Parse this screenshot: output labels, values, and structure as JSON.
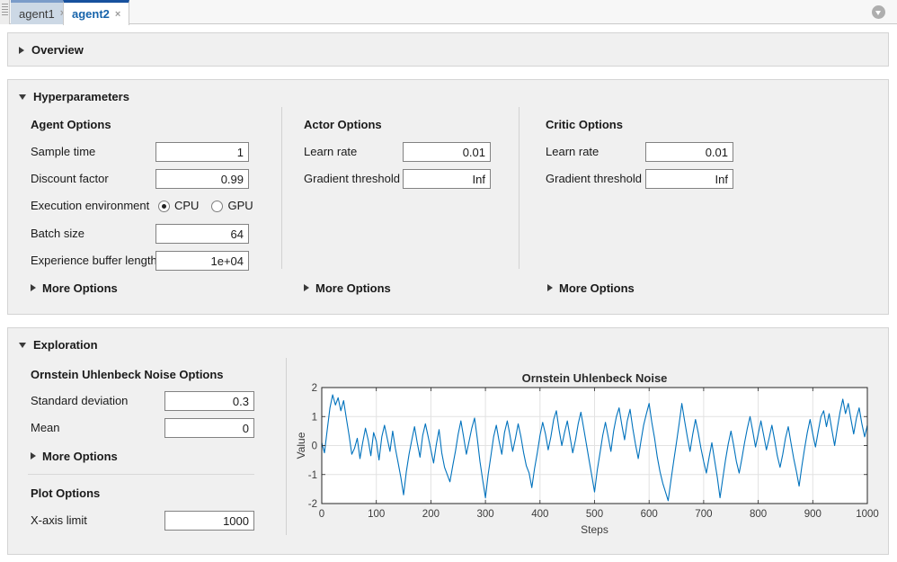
{
  "tabs": [
    {
      "label": "agent1",
      "close": "×",
      "active": false
    },
    {
      "label": "agent2",
      "close": "×",
      "active": true
    }
  ],
  "overview": {
    "title": "Overview"
  },
  "hyperparameters": {
    "title": "Hyperparameters",
    "agent_options": {
      "title": "Agent Options",
      "sample_time": {
        "label": "Sample time",
        "value": "1"
      },
      "discount_factor": {
        "label": "Discount factor",
        "value": "0.99"
      },
      "execution_environment": {
        "label": "Execution environment",
        "options": [
          {
            "label": "CPU",
            "selected": true
          },
          {
            "label": "GPU",
            "selected": false
          }
        ]
      },
      "batch_size": {
        "label": "Batch size",
        "value": "64"
      },
      "experience_buffer_length": {
        "label": "Experience buffer length",
        "value": "1e+04"
      },
      "more_options": "More Options"
    },
    "actor_options": {
      "title": "Actor Options",
      "learn_rate": {
        "label": "Learn rate",
        "value": "0.01"
      },
      "gradient_threshold": {
        "label": "Gradient threshold",
        "value": "Inf"
      },
      "more_options": "More Options"
    },
    "critic_options": {
      "title": "Critic Options",
      "learn_rate": {
        "label": "Learn rate",
        "value": "0.01"
      },
      "gradient_threshold": {
        "label": "Gradient threshold",
        "value": "Inf"
      },
      "more_options": "More Options"
    }
  },
  "exploration": {
    "title": "Exploration",
    "noise_options": {
      "title": "Ornstein Uhlenbeck Noise Options",
      "standard_deviation": {
        "label": "Standard deviation",
        "value": "0.3"
      },
      "mean": {
        "label": "Mean",
        "value": "0"
      },
      "more_options": "More Options"
    },
    "plot_options": {
      "title": "Plot Options",
      "x_axis_limit": {
        "label": "X-axis limit",
        "value": "1000"
      }
    }
  },
  "chart_data": {
    "type": "line",
    "title": "Ornstein Uhlenbeck Noise",
    "xlabel": "Steps",
    "ylabel": "Value",
    "xlim": [
      0,
      1000
    ],
    "ylim": [
      -2,
      2
    ],
    "xticks": [
      0,
      100,
      200,
      300,
      400,
      500,
      600,
      700,
      800,
      900,
      1000
    ],
    "yticks": [
      -2,
      -1,
      0,
      1,
      2
    ],
    "grid": true,
    "legend": "none",
    "line_color": "#0072BD",
    "x_step": 5,
    "values": [
      0.1,
      -0.25,
      0.55,
      1.3,
      1.75,
      1.4,
      1.65,
      1.2,
      1.55,
      0.95,
      0.35,
      -0.3,
      -0.1,
      0.25,
      -0.45,
      0.1,
      0.6,
      0.2,
      -0.35,
      0.45,
      0.15,
      -0.5,
      0.3,
      0.7,
      0.25,
      -0.2,
      0.5,
      -0.1,
      -0.6,
      -1.1,
      -1.7,
      -0.9,
      -0.3,
      0.2,
      0.65,
      0.1,
      -0.4,
      0.35,
      0.75,
      0.3,
      -0.15,
      -0.6,
      0.05,
      0.55,
      -0.25,
      -0.75,
      -1.0,
      -1.25,
      -0.7,
      -0.2,
      0.4,
      0.85,
      0.3,
      -0.3,
      0.15,
      0.6,
      0.95,
      0.25,
      -0.55,
      -1.2,
      -1.8,
      -1.0,
      -0.35,
      0.3,
      0.7,
      0.15,
      -0.3,
      0.45,
      0.85,
      0.35,
      -0.2,
      0.25,
      0.75,
      0.3,
      -0.25,
      -0.7,
      -0.95,
      -1.45,
      -0.8,
      -0.25,
      0.35,
      0.8,
      0.4,
      -0.15,
      0.3,
      0.9,
      1.2,
      0.55,
      0.0,
      0.45,
      0.85,
      0.3,
      -0.25,
      0.2,
      0.75,
      1.15,
      0.6,
      0.05,
      -0.5,
      -1.05,
      -1.6,
      -0.85,
      -0.25,
      0.35,
      0.8,
      0.3,
      -0.2,
      0.5,
      1.0,
      1.3,
      0.7,
      0.2,
      0.85,
      1.25,
      0.6,
      0.05,
      -0.45,
      0.15,
      0.7,
      1.1,
      1.45,
      0.8,
      0.25,
      -0.4,
      -0.9,
      -1.3,
      -1.6,
      -1.9,
      -1.2,
      -0.55,
      0.1,
      0.75,
      1.45,
      0.85,
      0.3,
      -0.2,
      0.4,
      0.9,
      0.45,
      -0.1,
      -0.55,
      -0.95,
      -0.4,
      0.1,
      -0.5,
      -1.1,
      -1.8,
      -1.15,
      -0.5,
      0.05,
      0.5,
      0.0,
      -0.55,
      -0.95,
      -0.45,
      0.1,
      0.6,
      1.0,
      0.5,
      -0.05,
      0.4,
      0.85,
      0.35,
      -0.15,
      0.25,
      0.7,
      0.2,
      -0.35,
      -0.75,
      -0.3,
      0.25,
      0.65,
      0.1,
      -0.45,
      -0.9,
      -1.4,
      -0.7,
      -0.1,
      0.45,
      0.9,
      0.4,
      -0.05,
      0.5,
      1.0,
      1.2,
      0.65,
      1.1,
      0.55,
      0.0,
      0.6,
      1.15,
      1.6,
      1.1,
      1.45,
      0.9,
      0.4,
      0.95,
      1.3,
      0.75,
      0.3,
      0.7
    ]
  },
  "colors": {
    "accent_blue": "#1764ab",
    "active_tab_top": "#17519e",
    "panel_bg": "#f0f0f0",
    "plot_line": "#0072BD"
  }
}
